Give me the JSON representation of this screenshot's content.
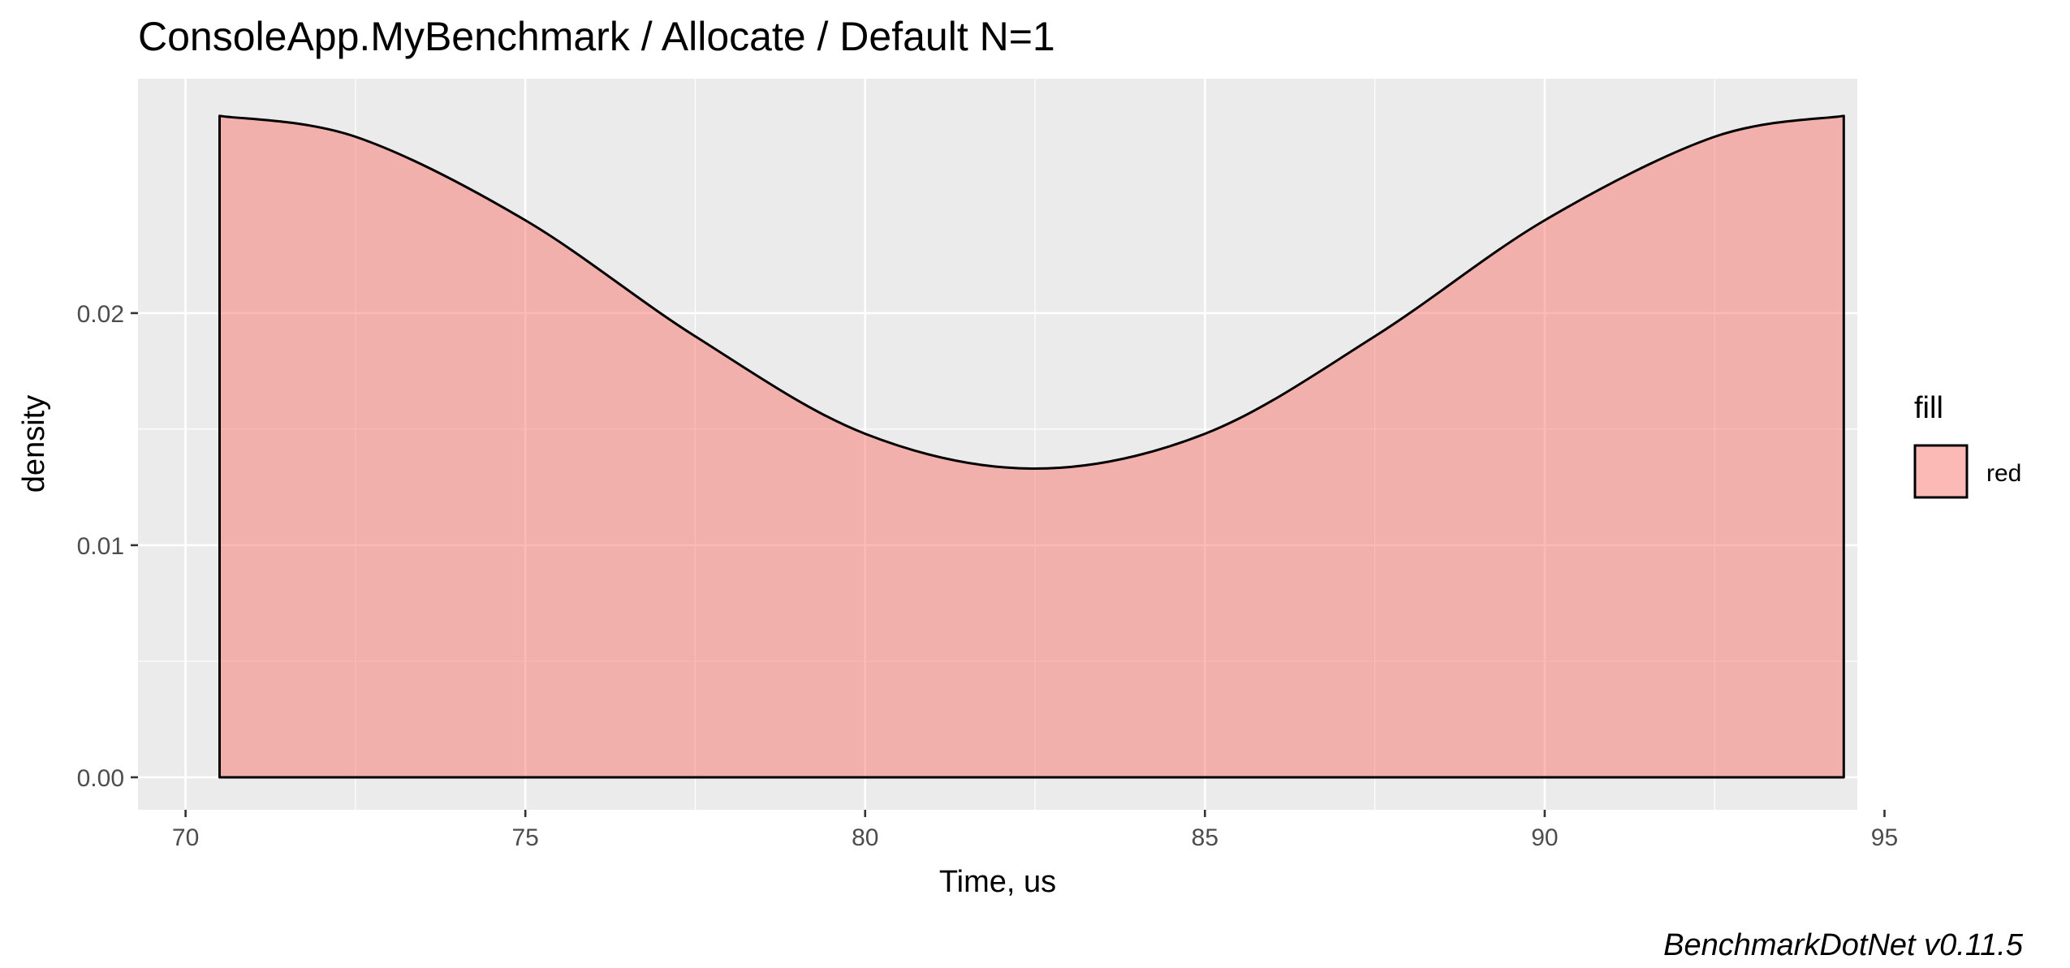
{
  "chart_data": {
    "type": "area",
    "title": "ConsoleApp.MyBenchmark / Allocate / Default N=1",
    "xlabel": "Time, us",
    "ylabel": "density",
    "xlim": [
      69.3,
      94.6
    ],
    "ylim": [
      -0.0014,
      0.0301
    ],
    "x_ticks": [
      70,
      75,
      80,
      85,
      90,
      95
    ],
    "x_tick_labels": [
      "70",
      "75",
      "80",
      "85",
      "90",
      "95"
    ],
    "y_ticks": [
      0.0,
      0.01,
      0.02
    ],
    "y_tick_labels": [
      "0.00",
      "0.01",
      "0.02"
    ],
    "grid": true,
    "legend": {
      "title": "fill",
      "position": "right",
      "entries": [
        {
          "label": "red",
          "color": "#F8766D"
        }
      ]
    },
    "series": [
      {
        "name": "red",
        "fill": "#F8766D",
        "fill_opacity": 0.5,
        "stroke": "#000000",
        "x": [
          70.5,
          72.5,
          75.0,
          77.5,
          80.0,
          82.5,
          85.0,
          87.5,
          90.0,
          92.5,
          94.4
        ],
        "values": [
          0.0285,
          0.0276,
          0.024,
          0.019,
          0.0148,
          0.0133,
          0.0148,
          0.019,
          0.024,
          0.0276,
          0.0285
        ]
      }
    ],
    "caption": "BenchmarkDotNet v0.11.5"
  },
  "colors": {
    "panel_background": "#EBEBEB",
    "grid": "#FFFFFF",
    "fill": "#F8766D",
    "outline": "#000000"
  }
}
